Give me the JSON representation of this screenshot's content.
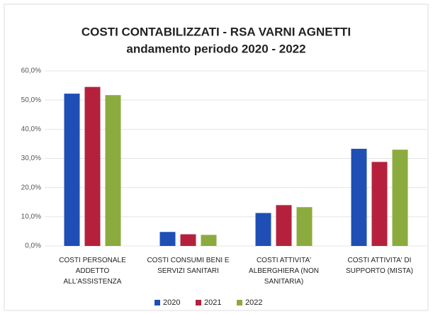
{
  "chart_data": {
    "type": "bar",
    "title": "COSTI CONTABILIZZATI - RSA VARNI AGNETTI",
    "subtitle": "andamento periodo 2020 - 2022",
    "categories": [
      [
        "COSTI PERSONALE",
        "ADDETTO",
        "ALL'ASSISTENZA"
      ],
      [
        "COSTI CONSUMI BENI E",
        "SERVIZI SANITARI"
      ],
      [
        "COSTI ATTIVITA'",
        "ALBERGHIERA (NON",
        "SANITARIA)"
      ],
      [
        "COSTI ATTIVITA' DI",
        "SUPPORTO (MISTA)"
      ]
    ],
    "series": [
      {
        "name": "2020",
        "color": "#1f4fb5",
        "values": [
          52.2,
          4.8,
          11.3,
          33.3
        ]
      },
      {
        "name": "2021",
        "color": "#b5213c",
        "values": [
          54.5,
          4.0,
          14.0,
          28.8
        ]
      },
      {
        "name": "2022",
        "color": "#8cab3e",
        "values": [
          51.7,
          3.8,
          13.3,
          33.0
        ]
      }
    ],
    "ylim": [
      0,
      60
    ],
    "yticks": [
      {
        "value": 0,
        "label": "0,0%"
      },
      {
        "value": 10,
        "label": "10,0%"
      },
      {
        "value": 20,
        "label": "20,0%"
      },
      {
        "value": 30,
        "label": "30,0%"
      },
      {
        "value": 40,
        "label": "40,0%"
      },
      {
        "value": 50,
        "label": "50,0%"
      },
      {
        "value": 60,
        "label": "60,0%"
      }
    ],
    "grid": true,
    "legend": "bottom"
  }
}
